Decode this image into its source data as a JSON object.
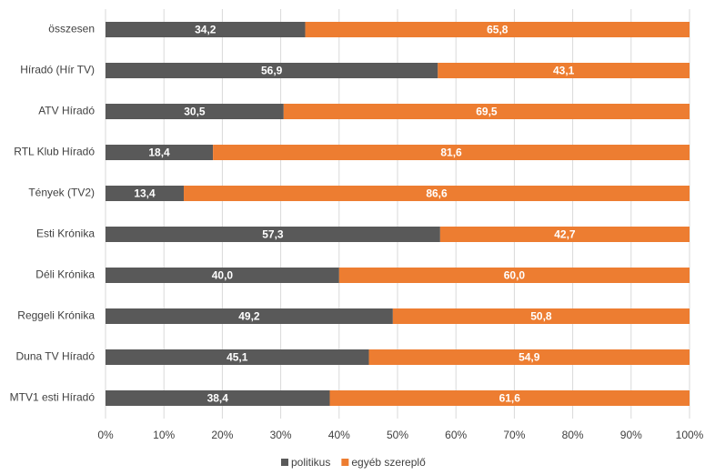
{
  "chart_data": {
    "type": "stacked-bar-horizontal",
    "categories": [
      "összesen",
      "Híradó (Hír TV)",
      "ATV Híradó",
      "RTL Klub Híradó",
      "Tények (TV2)",
      "Esti Krónika",
      "Déli Krónika",
      "Reggeli Krónika",
      "Duna TV Híradó",
      "MTV1 esti Híradó"
    ],
    "series": [
      {
        "name": "politikus",
        "color": "#595959",
        "values": [
          34.2,
          56.9,
          30.5,
          18.4,
          13.4,
          57.3,
          40.0,
          49.2,
          45.1,
          38.4
        ],
        "value_labels": [
          "34,2",
          "56,9",
          "30,5",
          "18,4",
          "13,4",
          "57,3",
          "40,0",
          "49,2",
          "45,1",
          "38,4"
        ]
      },
      {
        "name": "egyéb szereplő",
        "color": "#ed7d31",
        "values": [
          65.8,
          43.1,
          69.5,
          81.6,
          86.6,
          42.7,
          60.0,
          50.8,
          54.9,
          61.6
        ],
        "value_labels": [
          "65,8",
          "43,1",
          "69,5",
          "81,6",
          "86,6",
          "42,7",
          "60,0",
          "50,8",
          "54,9",
          "61,6"
        ]
      }
    ],
    "xlim": [
      0,
      100
    ],
    "xticks": [
      {
        "value": 0,
        "label": "0%"
      },
      {
        "value": 10,
        "label": "10%"
      },
      {
        "value": 20,
        "label": "20%"
      },
      {
        "value": 30,
        "label": "30%"
      },
      {
        "value": 40,
        "label": "40%"
      },
      {
        "value": 50,
        "label": "50%"
      },
      {
        "value": 60,
        "label": "60%"
      },
      {
        "value": 70,
        "label": "70%"
      },
      {
        "value": 80,
        "label": "80%"
      },
      {
        "value": 90,
        "label": "90%"
      },
      {
        "value": 100,
        "label": "100%"
      }
    ],
    "grid": true,
    "legend": "bottom"
  }
}
